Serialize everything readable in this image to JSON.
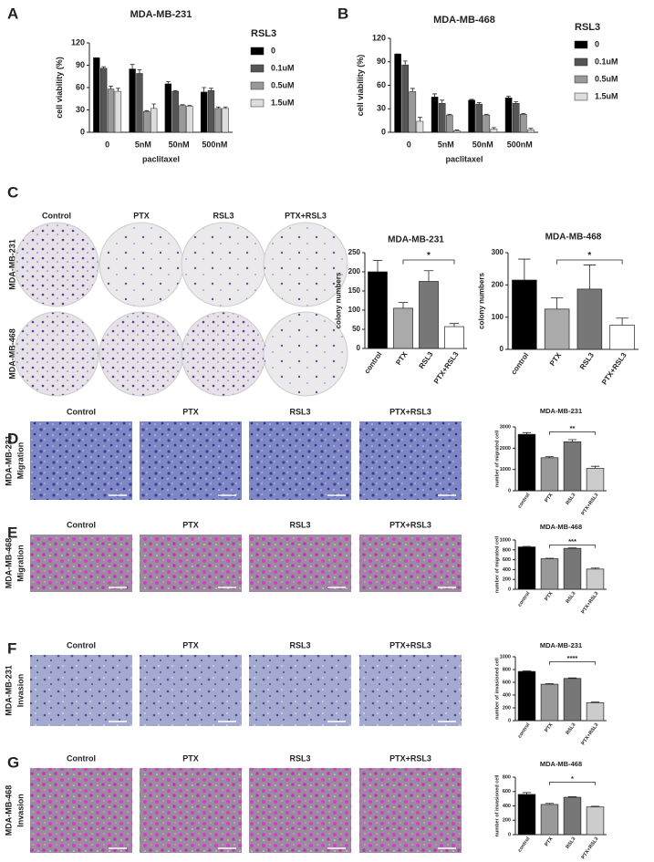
{
  "figure": {
    "panel_letters": [
      "A",
      "B",
      "C",
      "D",
      "E",
      "F",
      "G"
    ],
    "colony_columns": [
      "Control",
      "PTX",
      "RSL3",
      "PTX+RSL3"
    ],
    "colony_rows": [
      "MDA-MB-231",
      "MDA-MB-468"
    ],
    "image_panels": [
      {
        "columns": [
          "Control",
          "PTX",
          "RSL3",
          "PTX+RSL3"
        ],
        "cell_line": "MDA-MB-231",
        "assay": "Migration"
      },
      {
        "columns": [
          "Control",
          "PTX",
          "RSL3",
          "PTX+RSL3"
        ],
        "cell_line": "MDA-MB-468",
        "assay": "Migration"
      },
      {
        "columns": [
          "Control",
          "PTX",
          "RSL3",
          "PTX+RSL3"
        ],
        "cell_line": "MDA-MB-231",
        "assay": "Invasion"
      },
      {
        "columns": [
          "Control",
          "PTX",
          "RSL3",
          "PTX+RSL3"
        ],
        "cell_line": "MDA-MB-468",
        "assay": "Invasion"
      }
    ]
  },
  "chart_data": [
    {
      "type": "grouped_bar",
      "title": "MDA-MB-231",
      "xlabel": "paclitaxel",
      "ylabel": "cell viability (%)",
      "categories": [
        "0",
        "5nM",
        "50nM",
        "500nM"
      ],
      "legend_title": "RSL3",
      "series": [
        {
          "name": "0",
          "color": "#000000",
          "values": [
            100,
            85,
            65,
            54
          ],
          "errors": [
            0,
            6,
            3,
            6
          ]
        },
        {
          "name": "0.1uM",
          "color": "#555555",
          "values": [
            86,
            79,
            55,
            56
          ],
          "errors": [
            2,
            5,
            1,
            3
          ]
        },
        {
          "name": "0.5uM",
          "color": "#999999",
          "values": [
            58,
            28,
            36,
            32
          ],
          "errors": [
            4,
            1,
            1,
            2
          ]
        },
        {
          "name": "1.5uM",
          "color": "#dddddd",
          "values": [
            55,
            32,
            35,
            32
          ],
          "errors": [
            4,
            6,
            1,
            2
          ]
        }
      ],
      "ylim": [
        0,
        120
      ],
      "yticks": [
        0,
        30,
        60,
        90,
        120
      ]
    },
    {
      "type": "grouped_bar",
      "title": "MDA-MB-468",
      "xlabel": "paclitaxel",
      "ylabel": "cell viability (%)",
      "categories": [
        "0",
        "5nM",
        "50nM",
        "500nM"
      ],
      "legend_title": "RSL3",
      "series": [
        {
          "name": "0",
          "color": "#000000",
          "values": [
            100,
            45,
            41,
            44
          ],
          "errors": [
            0,
            4,
            1,
            2
          ]
        },
        {
          "name": "0.1uM",
          "color": "#555555",
          "values": [
            86,
            37,
            36,
            37
          ],
          "errors": [
            5,
            4,
            2,
            2
          ]
        },
        {
          "name": "0.5uM",
          "color": "#999999",
          "values": [
            52,
            22,
            22,
            23
          ],
          "errors": [
            4,
            1,
            1,
            1
          ]
        },
        {
          "name": "1.5uM",
          "color": "#dddddd",
          "values": [
            14,
            2,
            4,
            3
          ],
          "errors": [
            5,
            1,
            2,
            2
          ]
        }
      ],
      "ylim": [
        0,
        120
      ],
      "yticks": [
        0,
        30,
        60,
        90,
        120
      ]
    },
    {
      "type": "bar",
      "title": "MDA-MB-231",
      "ylabel": "colony numbers",
      "categories": [
        "control",
        "PTX",
        "RSL3",
        "PTX+RSL3"
      ],
      "values": [
        200,
        105,
        175,
        57
      ],
      "errors": [
        30,
        15,
        28,
        8
      ],
      "colors": [
        "#000000",
        "#aaaaaa",
        "#777777",
        "#ffffff"
      ],
      "ylim": [
        0,
        250
      ],
      "yticks": [
        0,
        50,
        100,
        150,
        200,
        250
      ],
      "significance": {
        "label": "*",
        "between": [
          "PTX",
          "PTX+RSL3"
        ]
      }
    },
    {
      "type": "bar",
      "title": "MDA-MB-468",
      "ylabel": "colony numbers",
      "categories": [
        "control",
        "PTX",
        "RSL3",
        "PTX+RSL3"
      ],
      "values": [
        215,
        125,
        187,
        75
      ],
      "errors": [
        65,
        35,
        75,
        22
      ],
      "colors": [
        "#000000",
        "#aaaaaa",
        "#777777",
        "#ffffff"
      ],
      "ylim": [
        0,
        300
      ],
      "yticks": [
        0,
        100,
        200,
        300
      ],
      "significance": {
        "label": "*",
        "between": [
          "PTX",
          "PTX+RSL3"
        ]
      }
    },
    {
      "type": "bar",
      "title": "MDA-MB-231",
      "ylabel": "number of migrated cell",
      "categories": [
        "control",
        "PTX",
        "RSL3",
        "PTX+RSL3"
      ],
      "values": [
        2650,
        1550,
        2300,
        1050
      ],
      "errors": [
        80,
        50,
        100,
        100
      ],
      "colors": [
        "#000000",
        "#999999",
        "#777777",
        "#cccccc"
      ],
      "ylim": [
        0,
        3000
      ],
      "yticks": [
        0,
        1000,
        2000,
        3000
      ],
      "significance": {
        "label": "**",
        "between": [
          "PTX",
          "PTX+RSL3"
        ]
      }
    },
    {
      "type": "bar",
      "title": "MDA-MB-468",
      "ylabel": "number of migrated cell",
      "categories": [
        "control",
        "PTX",
        "RSL3",
        "PTX+RSL3"
      ],
      "values": [
        860,
        620,
        830,
        410
      ],
      "errors": [
        10,
        10,
        10,
        20
      ],
      "colors": [
        "#000000",
        "#999999",
        "#777777",
        "#cccccc"
      ],
      "ylim": [
        0,
        1000
      ],
      "yticks": [
        0,
        200,
        400,
        600,
        800,
        1000
      ],
      "significance": {
        "label": "***",
        "between": [
          "PTX",
          "PTX+RSL3"
        ]
      }
    },
    {
      "type": "bar",
      "title": "MDA-MB-231",
      "ylabel": "number of invasioned cell",
      "categories": [
        "control",
        "PTX",
        "RSL3",
        "PTX+RSL3"
      ],
      "values": [
        770,
        570,
        660,
        280
      ],
      "errors": [
        10,
        10,
        10,
        10
      ],
      "colors": [
        "#000000",
        "#999999",
        "#777777",
        "#cccccc"
      ],
      "ylim": [
        0,
        1000
      ],
      "yticks": [
        0,
        200,
        400,
        600,
        800,
        1000
      ],
      "significance": {
        "label": "****",
        "between": [
          "PTX",
          "PTX+RSL3"
        ]
      }
    },
    {
      "type": "bar",
      "title": "MDA-MB-468",
      "ylabel": "number of invasioned cell",
      "categories": [
        "control",
        "PTX",
        "RSL3",
        "PTX+RSL3"
      ],
      "values": [
        560,
        420,
        520,
        385
      ],
      "errors": [
        25,
        15,
        8,
        10
      ],
      "colors": [
        "#000000",
        "#999999",
        "#777777",
        "#cccccc"
      ],
      "ylim": [
        0,
        800
      ],
      "yticks": [
        0,
        200,
        400,
        600,
        800
      ],
      "significance": {
        "label": "*",
        "between": [
          "PTX",
          "PTX+RSL3"
        ]
      }
    }
  ]
}
